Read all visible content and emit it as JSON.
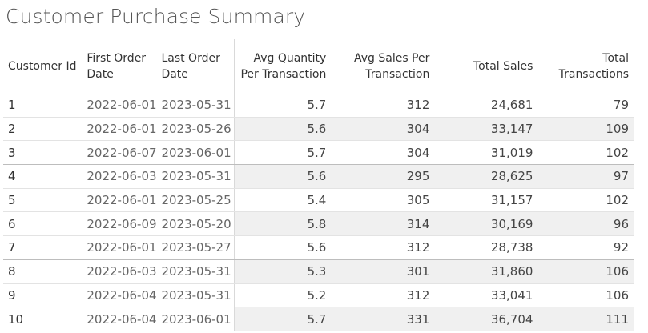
{
  "title": "Customer Purchase Summary",
  "table": {
    "headers": {
      "customer_id": "Customer Id",
      "first_order_line1": "First Order",
      "first_order_line2": "Date",
      "last_order_line1": "Last Order",
      "last_order_line2": "Date",
      "avg_qty_line1": "Avg Quantity",
      "avg_qty_line2": "Per Transaction",
      "avg_sales_line1": "Avg Sales Per",
      "avg_sales_line2": "Transaction",
      "total_sales": "Total Sales",
      "total_tx_line1": "Total",
      "total_tx_line2": "Transactions"
    },
    "rows": [
      {
        "id": "1",
        "first": "2022-06-01",
        "last": "2023-05-31",
        "avg_qty": "5.7",
        "avg_sales": "312",
        "total_sales": "24,681",
        "total_tx": "79"
      },
      {
        "id": "2",
        "first": "2022-06-01",
        "last": "2023-05-26",
        "avg_qty": "5.6",
        "avg_sales": "304",
        "total_sales": "33,147",
        "total_tx": "109"
      },
      {
        "id": "3",
        "first": "2022-06-07",
        "last": "2023-06-01",
        "avg_qty": "5.7",
        "avg_sales": "304",
        "total_sales": "31,019",
        "total_tx": "102"
      },
      {
        "id": "4",
        "first": "2022-06-03",
        "last": "2023-05-31",
        "avg_qty": "5.6",
        "avg_sales": "295",
        "total_sales": "28,625",
        "total_tx": "97"
      },
      {
        "id": "5",
        "first": "2022-06-01",
        "last": "2023-05-25",
        "avg_qty": "5.4",
        "avg_sales": "305",
        "total_sales": "31,157",
        "total_tx": "102"
      },
      {
        "id": "6",
        "first": "2022-06-09",
        "last": "2023-05-20",
        "avg_qty": "5.8",
        "avg_sales": "314",
        "total_sales": "30,169",
        "total_tx": "96"
      },
      {
        "id": "7",
        "first": "2022-06-01",
        "last": "2023-05-27",
        "avg_qty": "5.6",
        "avg_sales": "312",
        "total_sales": "28,738",
        "total_tx": "92"
      },
      {
        "id": "8",
        "first": "2022-06-03",
        "last": "2023-05-31",
        "avg_qty": "5.3",
        "avg_sales": "301",
        "total_sales": "31,860",
        "total_tx": "106"
      },
      {
        "id": "9",
        "first": "2022-06-04",
        "last": "2023-05-31",
        "avg_qty": "5.2",
        "avg_sales": "312",
        "total_sales": "33,041",
        "total_tx": "106"
      },
      {
        "id": "10",
        "first": "2022-06-04",
        "last": "2023-06-01",
        "avg_qty": "5.7",
        "avg_sales": "331",
        "total_sales": "36,704",
        "total_tx": "111"
      }
    ]
  },
  "colors": {
    "row_shade": "#f0f0f0",
    "title_text": "#555555",
    "date_text": "#666666"
  }
}
